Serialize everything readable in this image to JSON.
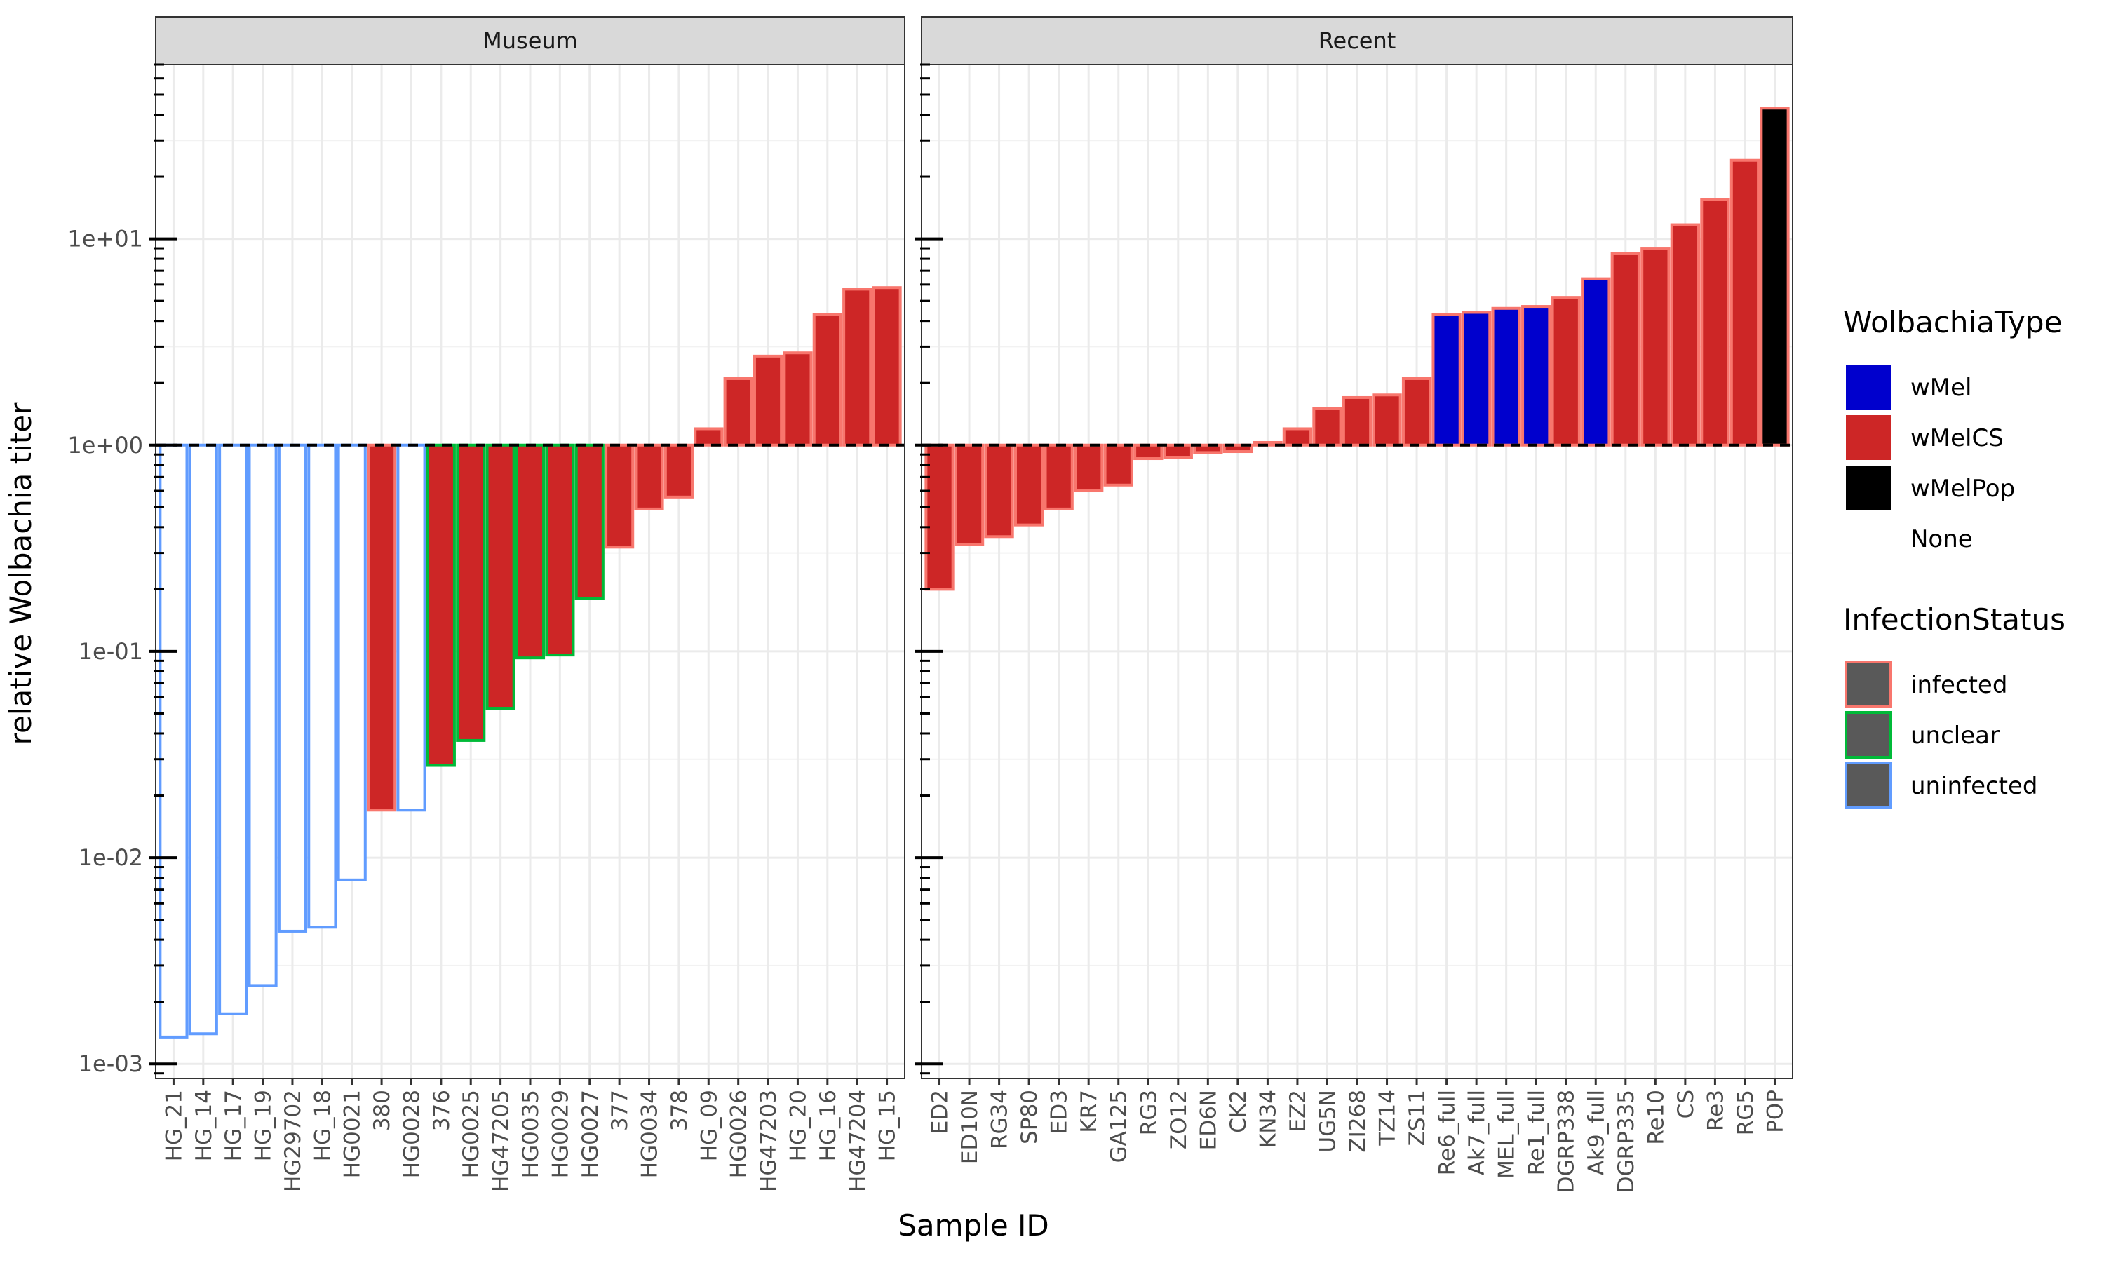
{
  "chart_data": {
    "type": "bar",
    "xlabel": "Sample ID",
    "ylabel": "relative Wolbachia titer",
    "yscale": "log10",
    "ylim": [
      0.00085,
      70
    ],
    "reference_line": 1,
    "y_ticks": [
      0.001,
      0.01,
      0.1,
      1,
      10
    ],
    "y_tick_labels": [
      "1e-03",
      "1e-02",
      "1e-01",
      "1e+00",
      "1e+01"
    ],
    "grid": true,
    "legend_position": "right",
    "colors": {
      "wMel": "#0000CD",
      "wMelCS": "#CD2626",
      "wMelPop": "#000000",
      "None": "#FFFFFF",
      "infected": "#F8766D",
      "unclear": "#00BA38",
      "uninfected": "#619CFF"
    },
    "legends": [
      {
        "title": "WolbachiaType",
        "entries": [
          "wMel",
          "wMelCS",
          "wMelPop",
          "None"
        ]
      },
      {
        "title": "InfectionStatus",
        "entries": [
          "infected",
          "unclear",
          "uninfected"
        ]
      }
    ],
    "panels": [
      {
        "title": "Museum",
        "bars": [
          {
            "id": "HG_21",
            "value": 0.00135,
            "type": "None",
            "status": "uninfected"
          },
          {
            "id": "HG_14",
            "value": 0.0014,
            "type": "None",
            "status": "uninfected"
          },
          {
            "id": "HG_17",
            "value": 0.00175,
            "type": "None",
            "status": "uninfected"
          },
          {
            "id": "HG_19",
            "value": 0.0024,
            "type": "None",
            "status": "uninfected"
          },
          {
            "id": "HG29702",
            "value": 0.0044,
            "type": "None",
            "status": "uninfected"
          },
          {
            "id": "HG_18",
            "value": 0.0046,
            "type": "None",
            "status": "uninfected"
          },
          {
            "id": "HG0021",
            "value": 0.0078,
            "type": "None",
            "status": "uninfected"
          },
          {
            "id": "380",
            "value": 0.017,
            "type": "wMelCS",
            "status": "infected"
          },
          {
            "id": "HG0028",
            "value": 0.017,
            "type": "None",
            "status": "uninfected"
          },
          {
            "id": "376",
            "value": 0.028,
            "type": "wMelCS",
            "status": "unclear"
          },
          {
            "id": "HG0025",
            "value": 0.037,
            "type": "wMelCS",
            "status": "unclear"
          },
          {
            "id": "HG47205",
            "value": 0.053,
            "type": "wMelCS",
            "status": "unclear"
          },
          {
            "id": "HG0035",
            "value": 0.093,
            "type": "wMelCS",
            "status": "unclear"
          },
          {
            "id": "HG0029",
            "value": 0.096,
            "type": "wMelCS",
            "status": "unclear"
          },
          {
            "id": "HG0027",
            "value": 0.18,
            "type": "wMelCS",
            "status": "unclear"
          },
          {
            "id": "377",
            "value": 0.32,
            "type": "wMelCS",
            "status": "infected"
          },
          {
            "id": "HG0034",
            "value": 0.49,
            "type": "wMelCS",
            "status": "infected"
          },
          {
            "id": "378",
            "value": 0.56,
            "type": "wMelCS",
            "status": "infected"
          },
          {
            "id": "HG_09",
            "value": 1.2,
            "type": "wMelCS",
            "status": "infected"
          },
          {
            "id": "HG0026",
            "value": 2.1,
            "type": "wMelCS",
            "status": "infected"
          },
          {
            "id": "HG47203",
            "value": 2.7,
            "type": "wMelCS",
            "status": "infected"
          },
          {
            "id": "HG_20",
            "value": 2.8,
            "type": "wMelCS",
            "status": "infected"
          },
          {
            "id": "HG_16",
            "value": 4.3,
            "type": "wMelCS",
            "status": "infected"
          },
          {
            "id": "HG47204",
            "value": 5.7,
            "type": "wMelCS",
            "status": "infected"
          },
          {
            "id": "HG_15",
            "value": 5.8,
            "type": "wMelCS",
            "status": "infected"
          }
        ]
      },
      {
        "title": "Recent",
        "bars": [
          {
            "id": "ED2",
            "value": 0.2,
            "type": "wMelCS",
            "status": "infected"
          },
          {
            "id": "ED10N",
            "value": 0.33,
            "type": "wMelCS",
            "status": "infected"
          },
          {
            "id": "RG34",
            "value": 0.36,
            "type": "wMelCS",
            "status": "infected"
          },
          {
            "id": "SP80",
            "value": 0.41,
            "type": "wMelCS",
            "status": "infected"
          },
          {
            "id": "ED3",
            "value": 0.49,
            "type": "wMelCS",
            "status": "infected"
          },
          {
            "id": "KR7",
            "value": 0.6,
            "type": "wMelCS",
            "status": "infected"
          },
          {
            "id": "GA125",
            "value": 0.64,
            "type": "wMelCS",
            "status": "infected"
          },
          {
            "id": "RG3",
            "value": 0.86,
            "type": "wMelCS",
            "status": "infected"
          },
          {
            "id": "ZO12",
            "value": 0.87,
            "type": "wMelCS",
            "status": "infected"
          },
          {
            "id": "ED6N",
            "value": 0.92,
            "type": "wMelCS",
            "status": "infected"
          },
          {
            "id": "CK2",
            "value": 0.93,
            "type": "wMelCS",
            "status": "infected"
          },
          {
            "id": "KN34",
            "value": 1.03,
            "type": "wMelCS",
            "status": "infected"
          },
          {
            "id": "EZ2",
            "value": 1.2,
            "type": "wMelCS",
            "status": "infected"
          },
          {
            "id": "UG5N",
            "value": 1.5,
            "type": "wMelCS",
            "status": "infected"
          },
          {
            "id": "ZI268",
            "value": 1.7,
            "type": "wMelCS",
            "status": "infected"
          },
          {
            "id": "TZ14",
            "value": 1.75,
            "type": "wMelCS",
            "status": "infected"
          },
          {
            "id": "ZS11",
            "value": 2.1,
            "type": "wMelCS",
            "status": "infected"
          },
          {
            "id": "Re6_full",
            "value": 4.3,
            "type": "wMel",
            "status": "infected"
          },
          {
            "id": "Ak7_full",
            "value": 4.4,
            "type": "wMel",
            "status": "infected"
          },
          {
            "id": "MEL_full",
            "value": 4.6,
            "type": "wMel",
            "status": "infected"
          },
          {
            "id": "Re1_full",
            "value": 4.7,
            "type": "wMel",
            "status": "infected"
          },
          {
            "id": "DGRP338",
            "value": 5.2,
            "type": "wMelCS",
            "status": "infected"
          },
          {
            "id": "Ak9_full",
            "value": 6.4,
            "type": "wMel",
            "status": "infected"
          },
          {
            "id": "DGRP335",
            "value": 8.5,
            "type": "wMelCS",
            "status": "infected"
          },
          {
            "id": "Re10",
            "value": 9.0,
            "type": "wMelCS",
            "status": "infected"
          },
          {
            "id": "CS",
            "value": 11.7,
            "type": "wMelCS",
            "status": "infected"
          },
          {
            "id": "Re3",
            "value": 15.5,
            "type": "wMelCS",
            "status": "infected"
          },
          {
            "id": "RG5",
            "value": 24,
            "type": "wMelCS",
            "status": "infected"
          },
          {
            "id": "POP",
            "value": 43,
            "type": "wMelPop",
            "status": "infected"
          }
        ]
      }
    ]
  }
}
